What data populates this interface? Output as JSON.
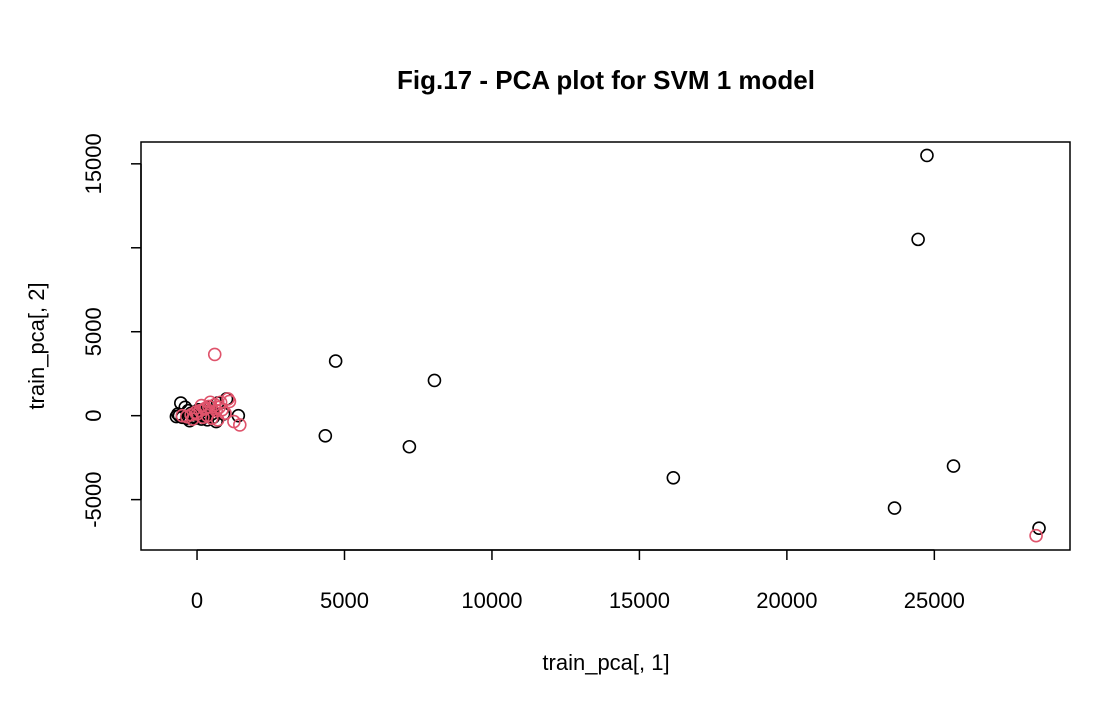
{
  "chart_data": {
    "type": "scatter",
    "title": "Fig.17 - PCA plot for SVM 1 model",
    "xlabel": "train_pca[, 1]",
    "ylabel": "train_pca[, 2]",
    "xlim": [
      -1900,
      29600
    ],
    "ylim": [
      -8000,
      16300
    ],
    "xticks": [
      0,
      5000,
      10000,
      15000,
      20000,
      25000
    ],
    "xtick_labels": [
      "0",
      "5000",
      "10000",
      "15000",
      "20000",
      "25000"
    ],
    "yticks": [
      -5000,
      0,
      5000,
      15000
    ],
    "ytick_labels": [
      "-5000",
      "0",
      "5000",
      "15000"
    ],
    "yticks_unlabeled": [
      10000
    ],
    "grid": false,
    "legend": "none",
    "series": [
      {
        "color": "#000000",
        "points": [
          [
            24750,
            15500
          ],
          [
            24450,
            10500
          ],
          [
            4700,
            3250
          ],
          [
            8050,
            2100
          ],
          [
            4350,
            -1200
          ],
          [
            7200,
            -1850
          ],
          [
            16150,
            -3700
          ],
          [
            25650,
            -3000
          ],
          [
            23650,
            -5500
          ],
          [
            28550,
            -6700
          ],
          [
            -550,
            750
          ],
          [
            -400,
            500
          ],
          [
            -300,
            300
          ],
          [
            -200,
            150
          ],
          [
            -100,
            100
          ],
          [
            0,
            50
          ],
          [
            100,
            200
          ],
          [
            200,
            100
          ],
          [
            300,
            150
          ],
          [
            -600,
            0
          ],
          [
            -700,
            -50
          ],
          [
            -500,
            -100
          ],
          [
            -350,
            -150
          ],
          [
            -150,
            -50
          ],
          [
            -50,
            -150
          ],
          [
            150,
            -200
          ],
          [
            250,
            0
          ],
          [
            400,
            250
          ],
          [
            500,
            100
          ],
          [
            900,
            100
          ],
          [
            1400,
            0
          ],
          [
            650,
            -350
          ],
          [
            550,
            -100
          ],
          [
            350,
            -250
          ],
          [
            -650,
            100
          ],
          [
            -250,
            -300
          ],
          [
            1000,
            1000
          ],
          [
            700,
            750
          ],
          [
            450,
            500
          ],
          [
            50,
            350
          ]
        ]
      },
      {
        "color": "#DF536B",
        "points": [
          [
            600,
            3650
          ],
          [
            1450,
            -550
          ],
          [
            28450,
            -7150
          ],
          [
            1250,
            -350
          ],
          [
            1050,
            1000
          ],
          [
            800,
            800
          ],
          [
            600,
            650
          ],
          [
            400,
            550
          ],
          [
            250,
            400
          ],
          [
            100,
            300
          ],
          [
            -50,
            200
          ],
          [
            -200,
            50
          ],
          [
            -350,
            -50
          ],
          [
            -500,
            0
          ],
          [
            200,
            -100
          ],
          [
            350,
            0
          ],
          [
            500,
            -150
          ],
          [
            700,
            -250
          ],
          [
            850,
            350
          ],
          [
            950,
            150
          ],
          [
            650,
            300
          ],
          [
            300,
            450
          ],
          [
            0,
            100
          ],
          [
            -150,
            -200
          ],
          [
            150,
            600
          ],
          [
            450,
            800
          ],
          [
            750,
            500
          ],
          [
            1100,
            850
          ]
        ]
      }
    ]
  }
}
